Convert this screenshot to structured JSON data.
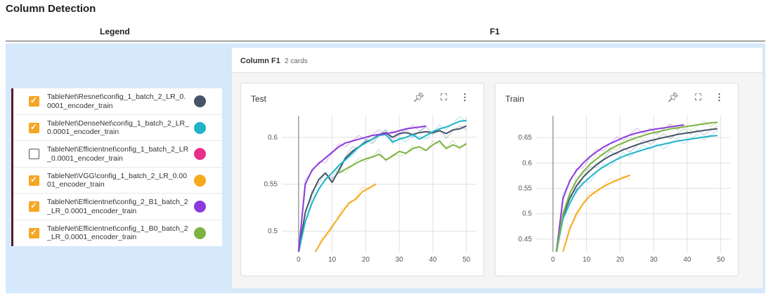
{
  "page": {
    "title": "Column Detection",
    "legend_header": "Legend",
    "f1_header": "F1"
  },
  "legend": {
    "items": [
      {
        "label": "TableNet\\Resnet\\config_1_batch_2_LR_0.0001_encoder_train",
        "checked": true,
        "color": "#475569"
      },
      {
        "label": "TableNet\\DenseNet\\config_1_batch_2_LR_0.0001_encoder_train",
        "checked": true,
        "color": "#1fb4ca"
      },
      {
        "label": "TableNet\\Efficientnet\\config_1_batch_2_LR_0.0001_encoder_train",
        "checked": false,
        "color": "#e62e8a"
      },
      {
        "label": "TableNet\\VGG\\config_1_batch_2_LR_0.0001_encoder_train",
        "checked": true,
        "color": "#f5a91b"
      },
      {
        "label": "TableNet\\Efficientnet\\config_2_B1_batch_2_LR_0.0001_encoder_train",
        "checked": true,
        "color": "#8c3bdb"
      },
      {
        "label": "TableNet\\Efficientnet\\config_1_B0_batch_2_LR_0.0001_encoder_train",
        "checked": true,
        "color": "#7cb342"
      }
    ]
  },
  "panel": {
    "title": "Column F1",
    "count": "2 cards"
  },
  "icons": {
    "pin": "pin-icon",
    "fullscreen": "fullscreen-icon",
    "more": "more-vert-icon"
  },
  "chart_data": [
    {
      "type": "line",
      "title": "Test",
      "xlim": [
        -5,
        53
      ],
      "ylim": [
        0.478,
        0.623
      ],
      "xticks": [
        0,
        10,
        20,
        30,
        40,
        50
      ],
      "yticks": [
        0.5,
        0.55,
        0.6
      ],
      "ytick_labels": [
        "0.5",
        "0.55",
        "0.6"
      ],
      "grid": true,
      "series": [
        {
          "color": "#475569",
          "x": [
            0,
            2,
            4,
            6,
            8,
            10,
            12,
            14,
            16,
            18,
            20,
            22,
            24,
            26,
            28,
            30,
            32,
            34,
            36,
            38,
            40,
            42,
            44,
            46,
            48,
            50
          ],
          "y": [
            0.478,
            0.52,
            0.54,
            0.555,
            0.562,
            0.552,
            0.565,
            0.578,
            0.585,
            0.59,
            0.595,
            0.598,
            0.603,
            0.605,
            0.6,
            0.604,
            0.605,
            0.603,
            0.605,
            0.606,
            0.605,
            0.607,
            0.604,
            0.608,
            0.609,
            0.612
          ]
        },
        {
          "color": "#1fb4ca",
          "x": [
            0,
            2,
            4,
            6,
            8,
            10,
            12,
            14,
            16,
            18,
            20,
            22,
            24,
            26,
            28,
            30,
            32,
            34,
            36,
            38,
            40,
            42,
            44,
            46,
            48,
            50
          ],
          "y": [
            0.478,
            0.51,
            0.53,
            0.545,
            0.555,
            0.562,
            0.57,
            0.576,
            0.583,
            0.59,
            0.594,
            0.598,
            0.602,
            0.603,
            0.595,
            0.598,
            0.6,
            0.603,
            0.598,
            0.602,
            0.606,
            0.609,
            0.611,
            0.614,
            0.617,
            0.618
          ]
        },
        {
          "color": "#f5a91b",
          "x": [
            5,
            7,
            9,
            11,
            13,
            15,
            17,
            19,
            21,
            23
          ],
          "y": [
            0.478,
            0.49,
            0.5,
            0.51,
            0.52,
            0.53,
            0.534,
            0.542,
            0.546,
            0.55
          ]
        },
        {
          "color": "#8c3bdb",
          "x": [
            0,
            2,
            4,
            6,
            8,
            10,
            12,
            14,
            16,
            18,
            20,
            22,
            24,
            26,
            28,
            30,
            32,
            34,
            36,
            38
          ],
          "y": [
            0.478,
            0.55,
            0.565,
            0.572,
            0.578,
            0.584,
            0.59,
            0.594,
            0.596,
            0.598,
            0.6,
            0.602,
            0.603,
            0.604,
            0.605,
            0.607,
            0.609,
            0.61,
            0.611,
            0.612
          ]
        },
        {
          "color": "#7cb342",
          "x": [
            12,
            14,
            16,
            18,
            20,
            22,
            24,
            26,
            28,
            30,
            32,
            34,
            36,
            38,
            40,
            42,
            44,
            46,
            48,
            50
          ],
          "y": [
            0.562,
            0.566,
            0.57,
            0.574,
            0.577,
            0.579,
            0.582,
            0.576,
            0.58,
            0.585,
            0.583,
            0.588,
            0.59,
            0.586,
            0.592,
            0.596,
            0.588,
            0.592,
            0.589,
            0.593
          ]
        }
      ]
    },
    {
      "type": "line",
      "title": "Train",
      "xlim": [
        -5,
        53
      ],
      "ylim": [
        0.425,
        0.693
      ],
      "xticks": [
        0,
        10,
        20,
        30,
        40,
        50
      ],
      "yticks": [
        0.45,
        0.5,
        0.55,
        0.6,
        0.65
      ],
      "ytick_labels": [
        "0.45",
        "0.5",
        "0.55",
        "0.6",
        "0.65"
      ],
      "grid": true,
      "series": [
        {
          "color": "#475569",
          "x": [
            1,
            3,
            5,
            7,
            9,
            11,
            13,
            15,
            17,
            19,
            21,
            23,
            25,
            27,
            29,
            31,
            33,
            35,
            37,
            39,
            41,
            43,
            45,
            47,
            49
          ],
          "y": [
            0.425,
            0.495,
            0.53,
            0.555,
            0.572,
            0.585,
            0.597,
            0.606,
            0.614,
            0.62,
            0.626,
            0.631,
            0.636,
            0.64,
            0.644,
            0.647,
            0.65,
            0.653,
            0.656,
            0.658,
            0.66,
            0.662,
            0.664,
            0.666,
            0.667
          ]
        },
        {
          "color": "#1fb4ca",
          "x": [
            1,
            3,
            5,
            7,
            9,
            11,
            13,
            15,
            17,
            19,
            21,
            23,
            25,
            27,
            29,
            31,
            33,
            35,
            37,
            39,
            41,
            43,
            45,
            47,
            49
          ],
          "y": [
            0.425,
            0.49,
            0.52,
            0.545,
            0.56,
            0.572,
            0.583,
            0.592,
            0.6,
            0.607,
            0.613,
            0.618,
            0.622,
            0.626,
            0.63,
            0.634,
            0.637,
            0.64,
            0.643,
            0.645,
            0.647,
            0.649,
            0.651,
            0.653,
            0.654
          ]
        },
        {
          "color": "#f5a91b",
          "x": [
            3,
            5,
            7,
            9,
            11,
            13,
            15,
            17,
            19,
            21,
            23
          ],
          "y": [
            0.425,
            0.47,
            0.5,
            0.52,
            0.535,
            0.545,
            0.553,
            0.56,
            0.566,
            0.571,
            0.576
          ]
        },
        {
          "color": "#8c3bdb",
          "x": [
            1,
            3,
            5,
            7,
            9,
            11,
            13,
            15,
            17,
            19,
            21,
            23,
            25,
            27,
            29,
            31,
            33,
            35,
            37,
            39
          ],
          "y": [
            0.425,
            0.53,
            0.565,
            0.585,
            0.6,
            0.612,
            0.622,
            0.631,
            0.638,
            0.644,
            0.65,
            0.655,
            0.659,
            0.662,
            0.665,
            0.667,
            0.669,
            0.671,
            0.673,
            0.675
          ]
        },
        {
          "color": "#7cb342",
          "x": [
            1,
            3,
            5,
            7,
            9,
            11,
            13,
            15,
            17,
            19,
            21,
            23,
            25,
            27,
            29,
            31,
            33,
            35,
            37,
            39,
            41,
            43,
            45,
            47,
            49
          ],
          "y": [
            0.425,
            0.5,
            0.54,
            0.565,
            0.583,
            0.597,
            0.608,
            0.618,
            0.627,
            0.634,
            0.64,
            0.645,
            0.65,
            0.654,
            0.658,
            0.661,
            0.664,
            0.667,
            0.669,
            0.671,
            0.673,
            0.675,
            0.677,
            0.679,
            0.68
          ]
        }
      ]
    }
  ]
}
